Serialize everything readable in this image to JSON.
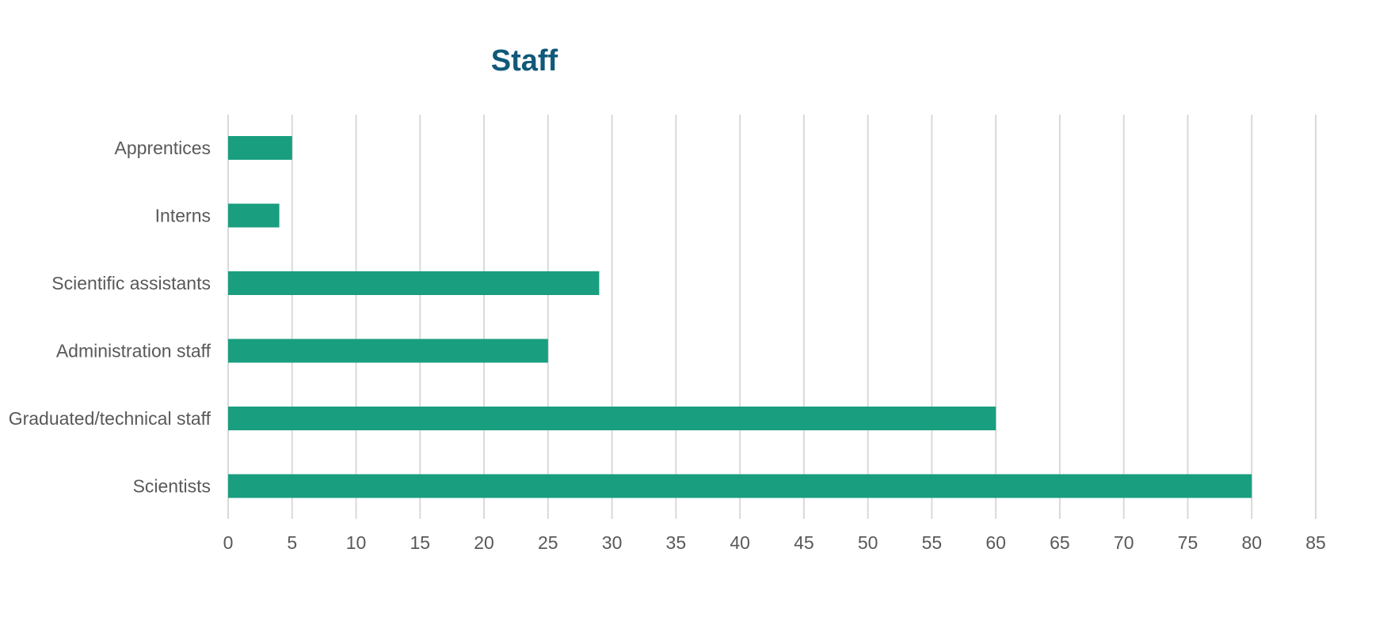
{
  "chart_data": {
    "type": "bar",
    "orientation": "horizontal",
    "title": "Staff",
    "xlabel": "",
    "ylabel": "",
    "categories": [
      "Apprentices",
      "Interns",
      "Scientific assistants",
      "Administration staff",
      "Graduated/technical staff",
      "Scientists"
    ],
    "values": [
      5,
      4,
      29,
      25,
      60,
      80
    ],
    "xlim": [
      0,
      85
    ],
    "xticks": [
      "0",
      "5",
      "10",
      "15",
      "20",
      "25",
      "30",
      "35",
      "40",
      "45",
      "50",
      "55",
      "60",
      "65",
      "70",
      "75",
      "80",
      "85"
    ],
    "grid": "vertical",
    "legend": "none",
    "colors": {
      "bar": "#199e7f",
      "title": "#10597a",
      "text": "#595959",
      "grid": "#d9d9d9"
    }
  }
}
